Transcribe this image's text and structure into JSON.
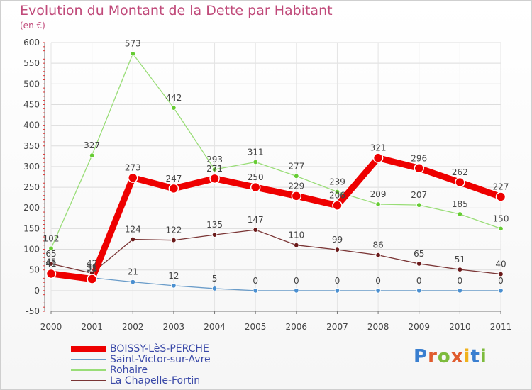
{
  "title": "Evolution du Montant de la Dette par Habitant",
  "subtitle": "(en €)",
  "logo": "Proxiti",
  "colors": {
    "title": "#c04a7a",
    "axis_text": "#444444",
    "legend_text": "#3a49a8"
  },
  "chart_data": {
    "type": "line",
    "title": "Evolution du Montant de la Dette par Habitant",
    "ylabel": "(en €)",
    "xlabel": "",
    "x": [
      "2000",
      "2001",
      "2002",
      "2003",
      "2004",
      "2005",
      "2006",
      "2007",
      "2008",
      "2009",
      "2010",
      "2011"
    ],
    "ylim": [
      -50,
      600
    ],
    "yticks": [
      "600",
      "550",
      "500",
      "450",
      "400",
      "350",
      "300",
      "250",
      "200",
      "150",
      "100",
      "50",
      "0",
      "-50"
    ],
    "ytick_values": [
      600,
      550,
      500,
      450,
      400,
      350,
      300,
      250,
      200,
      150,
      100,
      50,
      0,
      -50
    ],
    "legend_position": "bottom-left",
    "series": [
      {
        "name": "BOISSY-LèS-PERCHE",
        "color": "#ee0000",
        "marker": "#ee0000",
        "bold": true,
        "values": [
          41,
          28,
          273,
          247,
          271,
          250,
          229,
          206,
          321,
          296,
          262,
          227
        ],
        "labels": [
          "41",
          "28",
          "273",
          "247",
          "271",
          "250",
          "229",
          "206",
          "321",
          "296",
          "262",
          "227"
        ]
      },
      {
        "name": "Saint-Victor-sur-Avre",
        "color": "#6a9cc9",
        "marker": "#4a8fd0",
        "bold": false,
        "values": [
          45,
          31,
          21,
          12,
          5,
          0,
          0,
          0,
          0,
          0,
          0,
          0
        ],
        "labels": [
          "45",
          "31",
          "21",
          "12",
          "5",
          "0",
          "0",
          "0",
          "0",
          "0",
          "0",
          "0"
        ]
      },
      {
        "name": "Rohaire",
        "color": "#99dd77",
        "marker": "#66cc33",
        "bold": false,
        "values": [
          102,
          327,
          573,
          442,
          293,
          311,
          277,
          239,
          209,
          207,
          185,
          150
        ],
        "labels": [
          "102",
          "327",
          "573",
          "442",
          "293",
          "311",
          "277",
          "239",
          "209",
          "207",
          "185",
          "150"
        ]
      },
      {
        "name": "La Chapelle-Fortin",
        "color": "#7a3535",
        "marker": "#6b1a1a",
        "bold": false,
        "values": [
          65,
          42,
          124,
          122,
          135,
          147,
          110,
          99,
          86,
          65,
          51,
          40
        ],
        "labels": [
          "65",
          "42",
          "124",
          "122",
          "135",
          "147",
          "110",
          "99",
          "86",
          "65",
          "51",
          "40"
        ]
      }
    ]
  }
}
